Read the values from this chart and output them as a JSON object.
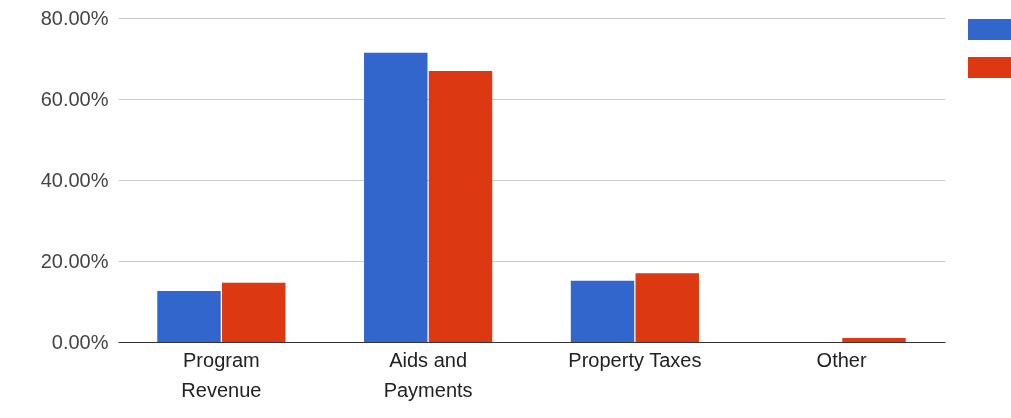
{
  "chart_data": {
    "type": "bar",
    "categories": [
      "Program Revenue",
      "Aids and Payments",
      "Property Taxes",
      "Other"
    ],
    "series": [
      {
        "color": "#3366cc",
        "values": [
          12.6,
          71.4,
          15.1,
          0
        ]
      },
      {
        "color": "#dc3912",
        "values": [
          14.6,
          66.9,
          17.0,
          1.0
        ]
      }
    ],
    "ylim": [
      0,
      80
    ],
    "yticks": [
      {
        "value": 0,
        "label": "0.00%"
      },
      {
        "value": 20,
        "label": "20.00%"
      },
      {
        "value": 40,
        "label": "40.00%"
      },
      {
        "value": 60,
        "label": "60.00%"
      },
      {
        "value": 80,
        "label": "80.00%"
      }
    ],
    "grid": "y"
  }
}
